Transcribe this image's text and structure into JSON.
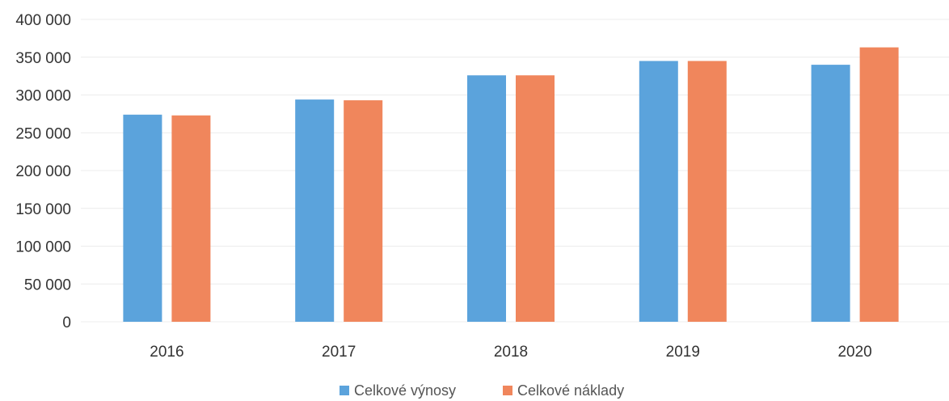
{
  "chart_data": {
    "type": "bar",
    "title": "",
    "xlabel": "",
    "ylabel": "",
    "categories": [
      "2016",
      "2017",
      "2018",
      "2019",
      "2020"
    ],
    "series": [
      {
        "name": "Celkové výnosy",
        "color": "#5ba3dc",
        "values": [
          274000,
          294000,
          326000,
          345000,
          340000
        ]
      },
      {
        "name": "Celkové náklady",
        "color": "#f0865c",
        "values": [
          273000,
          293000,
          326000,
          345000,
          363000
        ]
      }
    ],
    "ylim": [
      0,
      400000
    ],
    "yticks": [
      {
        "value": 0,
        "label": "0"
      },
      {
        "value": 50000,
        "label": "50 000"
      },
      {
        "value": 100000,
        "label": "100 000"
      },
      {
        "value": 150000,
        "label": "150 000"
      },
      {
        "value": 200000,
        "label": "200 000"
      },
      {
        "value": 250000,
        "label": "250 000"
      },
      {
        "value": 300000,
        "label": "300 000"
      },
      {
        "value": 350000,
        "label": "350 000"
      },
      {
        "value": 400000,
        "label": "400 000"
      }
    ],
    "grid": true,
    "legend_position": "bottom"
  }
}
